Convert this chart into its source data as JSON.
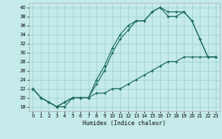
{
  "xlabel": "Humidex (Indice chaleur)",
  "xlim": [
    -0.5,
    23.5
  ],
  "ylim": [
    17,
    41
  ],
  "yticks": [
    18,
    20,
    22,
    24,
    26,
    28,
    30,
    32,
    34,
    36,
    38,
    40
  ],
  "xticks": [
    0,
    1,
    2,
    3,
    4,
    5,
    6,
    7,
    8,
    9,
    10,
    11,
    12,
    13,
    14,
    15,
    16,
    17,
    18,
    19,
    20,
    21,
    22,
    23
  ],
  "bg_color": "#c5eaea",
  "grid_color": "#96cccc",
  "line_color": "#1a6b5a",
  "line1_x": [
    0,
    1,
    2,
    3,
    4,
    5,
    6,
    7,
    8,
    9,
    10,
    11,
    12,
    13,
    14,
    15,
    16,
    17,
    18,
    19,
    20,
    21,
    22,
    23
  ],
  "line1_y": [
    22,
    20,
    19,
    18,
    18,
    20,
    20,
    20,
    24,
    27,
    31,
    34,
    36,
    37,
    37,
    39,
    40,
    39,
    39,
    39,
    37,
    33,
    29,
    29
  ],
  "line2_x": [
    0,
    1,
    2,
    3,
    4,
    5,
    6,
    7,
    8,
    9,
    10,
    11,
    12,
    13,
    14,
    15,
    16,
    17,
    18,
    19,
    20,
    21,
    22,
    23
  ],
  "line2_y": [
    22,
    20,
    19,
    18,
    19,
    20,
    20,
    20,
    23,
    26,
    30,
    33,
    35,
    37,
    37,
    39,
    40,
    38,
    38,
    39,
    37,
    33,
    29,
    29
  ],
  "line3_x": [
    0,
    1,
    2,
    3,
    4,
    5,
    6,
    7,
    8,
    9,
    10,
    11,
    12,
    13,
    14,
    15,
    16,
    17,
    18,
    19,
    20,
    21,
    22,
    23
  ],
  "line3_y": [
    22,
    20,
    19,
    18,
    19,
    20,
    20,
    20,
    21,
    21,
    22,
    22,
    23,
    24,
    25,
    26,
    27,
    28,
    28,
    29,
    29,
    29,
    29,
    29
  ]
}
